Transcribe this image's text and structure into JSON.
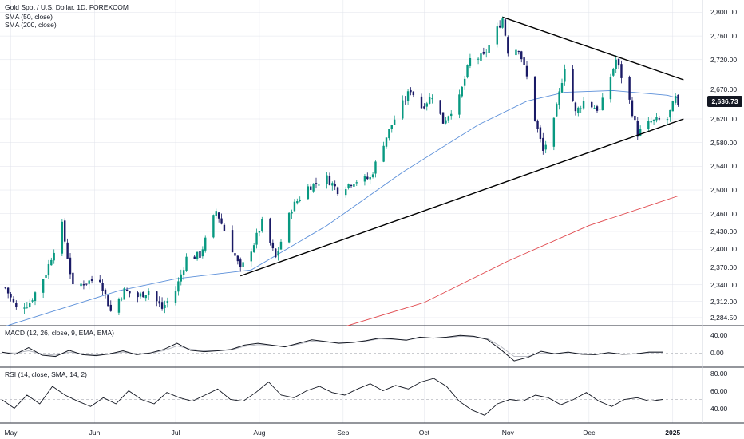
{
  "legend": {
    "title": "Gold Spot / U.S. Dollar, 1D, FOREXCOM",
    "sma50": "SMA (50, close)",
    "sma200": "SMA (200, close)",
    "macd": "MACD (12, 26, close, 9, EMA, EMA)",
    "rsi": "RSI (14, close, SMA, 14, 2)"
  },
  "current_price": "2,636.73",
  "colors": {
    "up": "#089981",
    "down": "#1a1a66",
    "sma50": "#5b8fd9",
    "sma200": "#e0474c",
    "trendline": "#000000",
    "grid": "#e0e3eb"
  },
  "price_axis_labels": [
    "2,800.00",
    "2,760.00",
    "2,720.00",
    "2,670.00",
    "2,620.00",
    "2,580.00",
    "2,540.00",
    "2,500.00",
    "2,460.00",
    "2,430.00",
    "2,400.00",
    "2,370.00",
    "2,340.00",
    "2,312.00",
    "2,284.50"
  ],
  "macd_axis_labels": [
    "40.00",
    "0.00"
  ],
  "rsi_axis_labels": [
    "80.00",
    "60.00",
    "40.00"
  ],
  "x_axis_labels": [
    "May",
    "Jun",
    "Jul",
    "Aug",
    "Sep",
    "Oct",
    "Nov",
    "Dec",
    "2025"
  ],
  "chart_data": {
    "type": "candlestick",
    "title": "Gold Spot / U.S. Dollar, 1D, FOREXCOM",
    "x_range": [
      "2024-04-29",
      "2025-01-03"
    ],
    "y_range": [
      2270,
      2810
    ],
    "close_anchors": [
      [
        "2024-04-29",
        2335
      ],
      [
        "2024-05-03",
        2300
      ],
      [
        "2024-05-08",
        2310
      ],
      [
        "2024-05-14",
        2360
      ],
      [
        "2024-05-20",
        2440
      ],
      [
        "2024-05-24",
        2335
      ],
      [
        "2024-05-29",
        2345
      ],
      [
        "2024-06-03",
        2350
      ],
      [
        "2024-06-07",
        2295
      ],
      [
        "2024-06-12",
        2330
      ],
      [
        "2024-06-17",
        2320
      ],
      [
        "2024-06-21",
        2330
      ],
      [
        "2024-06-26",
        2300
      ],
      [
        "2024-07-01",
        2330
      ],
      [
        "2024-07-05",
        2385
      ],
      [
        "2024-07-10",
        2390
      ],
      [
        "2024-07-16",
        2465
      ],
      [
        "2024-07-22",
        2400
      ],
      [
        "2024-07-25",
        2365
      ],
      [
        "2024-07-30",
        2410
      ],
      [
        "2024-08-02",
        2445
      ],
      [
        "2024-08-07",
        2385
      ],
      [
        "2024-08-13",
        2470
      ],
      [
        "2024-08-19",
        2505
      ],
      [
        "2024-08-26",
        2520
      ],
      [
        "2024-08-30",
        2500
      ],
      [
        "2024-09-05",
        2515
      ],
      [
        "2024-09-11",
        2520
      ],
      [
        "2024-09-16",
        2580
      ],
      [
        "2024-09-20",
        2620
      ],
      [
        "2024-09-26",
        2670
      ],
      [
        "2024-09-30",
        2640
      ],
      [
        "2024-10-04",
        2660
      ],
      [
        "2024-10-08",
        2615
      ],
      [
        "2024-10-14",
        2655
      ],
      [
        "2024-10-18",
        2720
      ],
      [
        "2024-10-23",
        2725
      ],
      [
        "2024-10-30",
        2790
      ],
      [
        "2024-11-01",
        2735
      ],
      [
        "2024-11-05",
        2740
      ],
      [
        "2024-11-08",
        2690
      ],
      [
        "2024-11-11",
        2620
      ],
      [
        "2024-11-14",
        2565
      ],
      [
        "2024-11-18",
        2615
      ],
      [
        "2024-11-22",
        2710
      ],
      [
        "2024-11-26",
        2630
      ],
      [
        "2024-11-29",
        2650
      ],
      [
        "2024-12-05",
        2635
      ],
      [
        "2024-12-11",
        2720
      ],
      [
        "2024-12-16",
        2650
      ],
      [
        "2024-12-19",
        2595
      ],
      [
        "2024-12-24",
        2615
      ],
      [
        "2024-12-30",
        2620
      ],
      [
        "2025-01-02",
        2655
      ],
      [
        "2025-01-03",
        2637
      ]
    ],
    "series": [
      {
        "name": "SMA (50, close)",
        "points": [
          [
            "2024-04-29",
            2270
          ],
          [
            "2024-05-20",
            2300
          ],
          [
            "2024-06-10",
            2330
          ],
          [
            "2024-07-01",
            2350
          ],
          [
            "2024-07-29",
            2365
          ],
          [
            "2024-08-26",
            2440
          ],
          [
            "2024-09-23",
            2530
          ],
          [
            "2024-10-21",
            2610
          ],
          [
            "2024-11-08",
            2650
          ],
          [
            "2024-11-22",
            2665
          ],
          [
            "2024-12-10",
            2668
          ],
          [
            "2024-12-30",
            2660
          ],
          [
            "2025-01-03",
            2655
          ]
        ]
      },
      {
        "name": "SMA (200, close)",
        "points": [
          [
            "2024-09-02",
            2270
          ],
          [
            "2024-10-01",
            2310
          ],
          [
            "2024-11-01",
            2380
          ],
          [
            "2024-12-01",
            2440
          ],
          [
            "2025-01-03",
            2490
          ]
        ]
      }
    ],
    "macd": {
      "range": [
        -25,
        55
      ],
      "line": [
        2,
        -3,
        12,
        -5,
        -8,
        6,
        -4,
        -6,
        -2,
        5,
        -4,
        0,
        8,
        22,
        6,
        3,
        5,
        8,
        18,
        22,
        18,
        14,
        22,
        30,
        26,
        22,
        24,
        28,
        34,
        32,
        29,
        36,
        34,
        36,
        40,
        38,
        31,
        8,
        -18,
        -10,
        4,
        -2,
        2,
        -3,
        -4,
        1,
        -3,
        -2,
        2,
        2
      ],
      "signal": [
        1,
        0,
        5,
        -2,
        -5,
        2,
        -2,
        -4,
        -3,
        2,
        -2,
        0,
        5,
        16,
        9,
        5,
        5,
        7,
        15,
        19,
        18,
        15,
        20,
        27,
        25,
        23,
        24,
        27,
        32,
        31,
        30,
        34,
        34,
        35,
        38,
        37,
        33,
        15,
        -8,
        -8,
        0,
        -1,
        1,
        -1,
        -3,
        -1,
        -2,
        -2,
        1,
        1
      ],
      "zero_level": 0
    },
    "rsi": {
      "range": [
        25,
        85
      ],
      "values": [
        50,
        40,
        55,
        45,
        65,
        55,
        48,
        42,
        52,
        45,
        60,
        50,
        45,
        58,
        52,
        48,
        55,
        62,
        50,
        48,
        58,
        70,
        55,
        52,
        60,
        65,
        58,
        55,
        62,
        68,
        60,
        66,
        62,
        70,
        74,
        65,
        48,
        38,
        32,
        45,
        50,
        48,
        55,
        52,
        44,
        50,
        58,
        48,
        42,
        50,
        52,
        48,
        50
      ],
      "levels": [
        70,
        50,
        30
      ]
    },
    "trendlines": [
      {
        "name": "upper",
        "from": [
          "2024-10-30",
          2792
        ],
        "to": [
          "2025-01-05",
          2686
        ]
      },
      {
        "name": "lower",
        "from": [
          "2024-07-25",
          2355
        ],
        "to": [
          "2025-01-05",
          2620
        ]
      }
    ]
  }
}
